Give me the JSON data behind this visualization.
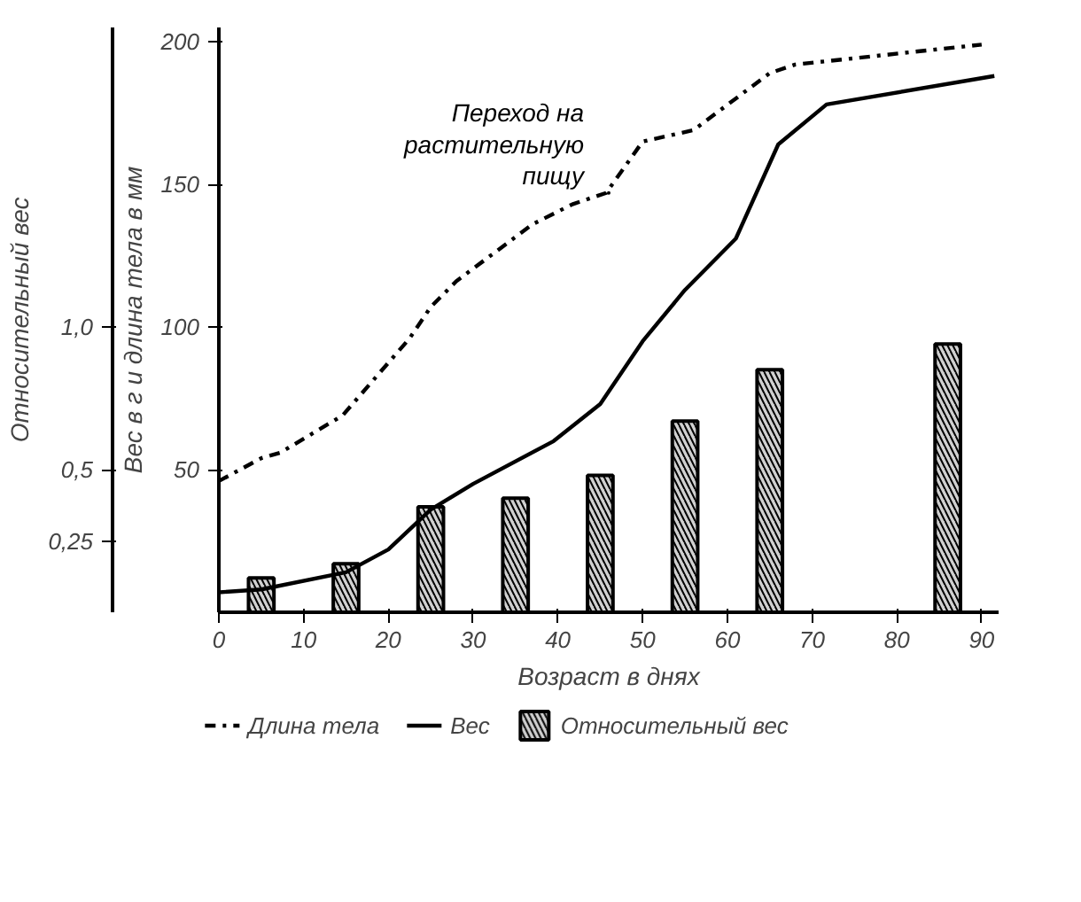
{
  "chart_data": {
    "type": "line",
    "xlabel": "Возраст в днях",
    "ylabel": "Вес в г и длина тела в мм",
    "y2label": "Относительный вес",
    "xlim": [
      0,
      92
    ],
    "ylim": [
      0,
      205
    ],
    "y2lim": [
      0,
      2.05
    ],
    "xticks": [
      0,
      10,
      20,
      30,
      40,
      50,
      60,
      70,
      80,
      90
    ],
    "yticks": [
      50,
      100,
      150,
      200
    ],
    "y2ticks": [
      {
        "value": 0.25,
        "label": "0,25"
      },
      {
        "value": 0.5,
        "label": "0,5"
      },
      {
        "value": 1.0,
        "label": "1,0"
      }
    ],
    "grid": false,
    "legend": "bottom",
    "series": [
      {
        "name": "Длина тела",
        "line_style": "dashdot",
        "color": "#000000",
        "x": [
          0,
          5,
          7.3,
          14.6,
          22.5,
          25,
          28,
          37,
          41.7,
          45.7,
          50,
          56,
          65,
          68,
          90
        ],
        "values": [
          46,
          54,
          56,
          69,
          96,
          107,
          116,
          136,
          143,
          147,
          165,
          169,
          189,
          192,
          199
        ]
      },
      {
        "name": "Вес",
        "line_style": "solid",
        "color": "#000000",
        "x": [
          0,
          5,
          15,
          20,
          25,
          30,
          39.5,
          45,
          50,
          55,
          61,
          66,
          71.7,
          91.5
        ],
        "values": [
          7,
          8,
          14,
          22,
          36,
          45,
          60,
          73,
          95,
          113,
          131,
          164,
          178,
          188
        ]
      },
      {
        "name": "Относительный вес",
        "type": "bar",
        "axis": "y2",
        "color": "#d0d0d0",
        "x": [
          5,
          15,
          25,
          35,
          45,
          55,
          65,
          86
        ],
        "values": [
          0.12,
          0.17,
          0.37,
          0.4,
          0.48,
          0.67,
          0.85,
          0.94
        ]
      }
    ],
    "annotations": [
      {
        "text": "Переход на\nрастительную\nпищу",
        "x": 46,
        "y": 147
      }
    ]
  }
}
